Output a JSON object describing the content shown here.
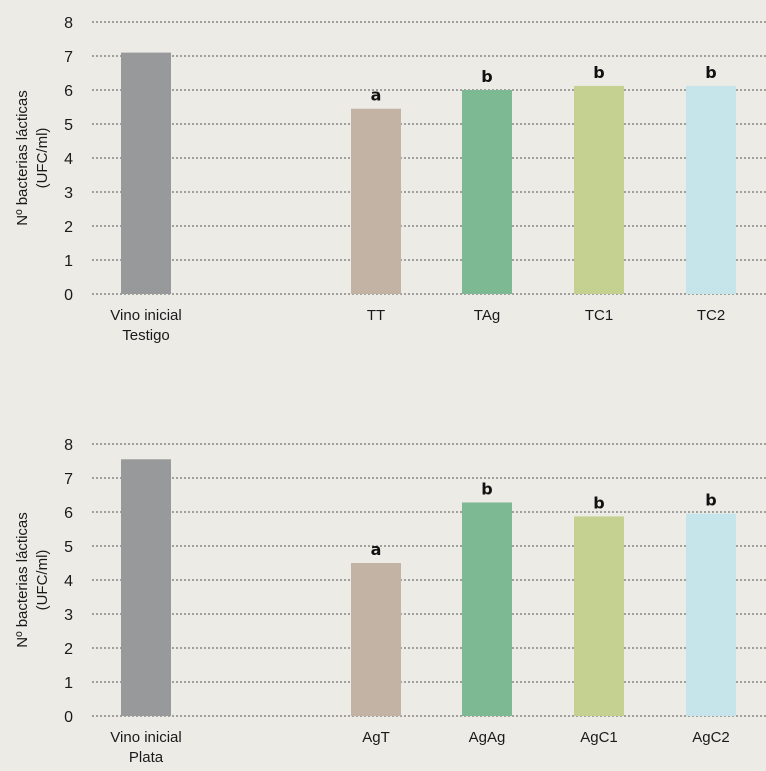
{
  "chart_data": [
    {
      "type": "bar",
      "ylabel": [
        "Nº bacterias lácticas",
        "(UFC/ml)"
      ],
      "ylim": [
        0,
        8
      ],
      "yticks": [
        0,
        1,
        2,
        3,
        4,
        5,
        6,
        7,
        8
      ],
      "grid": true,
      "categories": [
        {
          "label": [
            "Vino inicial",
            "Testigo"
          ],
          "value": 7.1,
          "color": "#97999b",
          "annotation": ""
        },
        {
          "label": [
            "TT"
          ],
          "value": 5.45,
          "color": "#c2b3a5",
          "annotation": "a"
        },
        {
          "label": [
            "TAg"
          ],
          "value": 6.0,
          "color": "#7dba93",
          "annotation": "b"
        },
        {
          "label": [
            "TC1"
          ],
          "value": 6.12,
          "color": "#c4d190",
          "annotation": "b"
        },
        {
          "label": [
            "TC2"
          ],
          "value": 6.12,
          "color": "#c6e5eb",
          "annotation": "b"
        }
      ]
    },
    {
      "type": "bar",
      "ylabel": [
        "Nº bacterias lácticas",
        "(UFC/ml)"
      ],
      "ylim": [
        0,
        8
      ],
      "yticks": [
        0,
        1,
        2,
        3,
        4,
        5,
        6,
        7,
        8
      ],
      "grid": true,
      "categories": [
        {
          "label": [
            "Vino inicial",
            "Plata"
          ],
          "value": 7.55,
          "color": "#97999b",
          "annotation": ""
        },
        {
          "label": [
            "AgT"
          ],
          "value": 4.5,
          "color": "#c2b3a5",
          "annotation": "a"
        },
        {
          "label": [
            "AgAg"
          ],
          "value": 6.28,
          "color": "#7dba93",
          "annotation": "b"
        },
        {
          "label": [
            "AgC1"
          ],
          "value": 5.87,
          "color": "#c4d190",
          "annotation": "b"
        },
        {
          "label": [
            "AgC2"
          ],
          "value": 5.95,
          "color": "#c6e5eb",
          "annotation": "b"
        }
      ]
    }
  ]
}
